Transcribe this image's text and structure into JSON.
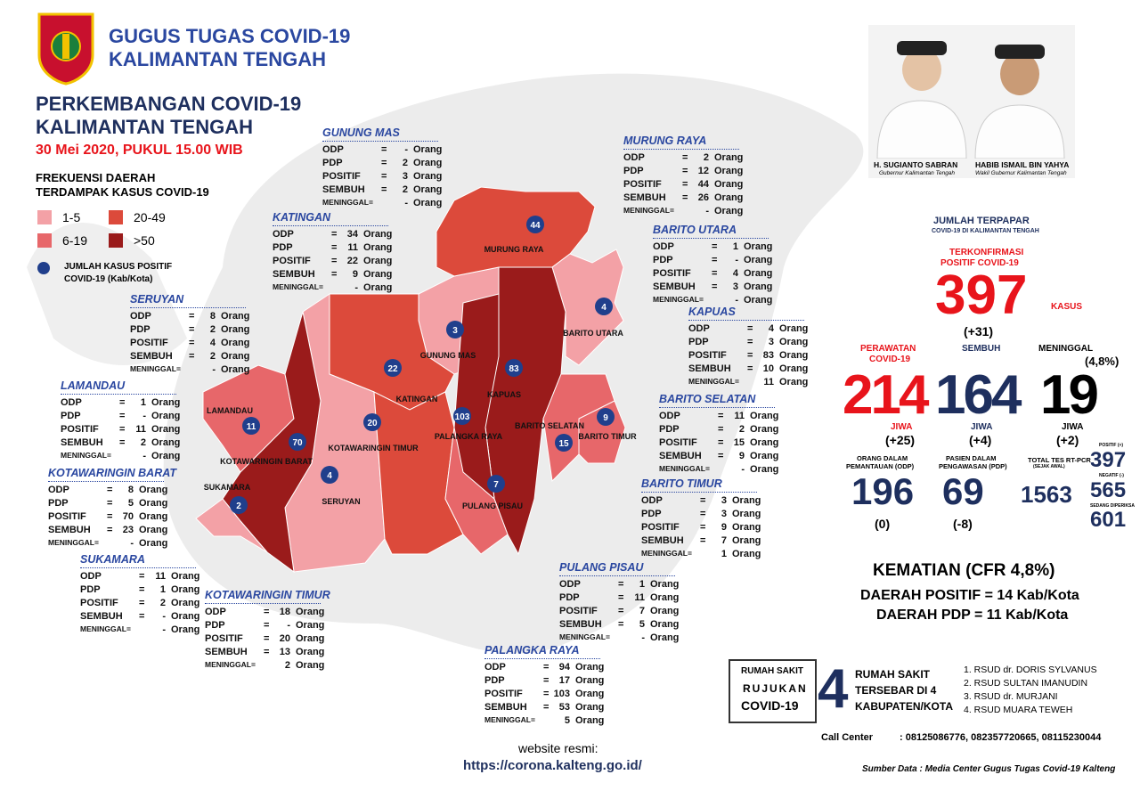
{
  "header": {
    "org_line1": "GUGUS TUGAS COVID-19",
    "org_line2": "KALIMANTAN TENGAH"
  },
  "report": {
    "title_line1": "PERKEMBANGAN COVID-19",
    "title_line2": "KALIMANTAN TENGAH",
    "date": "30 Mei 2020, PUKUL 15.00 WIB"
  },
  "legend": {
    "title_line1": "FREKUENSI DAERAH",
    "title_line2": "TERDAMPAK KASUS COVID-19",
    "classes": [
      {
        "label": "1-5",
        "color": "#f3a1a6"
      },
      {
        "label": "6-19",
        "color": "#e7676a"
      },
      {
        "label": "20-49",
        "color": "#dc4a3b"
      },
      {
        "label": ">50",
        "color": "#9a1b1b"
      }
    ],
    "marker_label_line1": "JUMLAH KASUS POSITIF",
    "marker_label_line2": "COVID-19 (Kab/Kota)",
    "marker_color": "#203f8c"
  },
  "region_table": {
    "row_labels": [
      "ODP",
      "PDP",
      "POSITIF",
      "SEMBUH",
      "MENINGGAL="
    ],
    "equals": "=",
    "unit": "Orang"
  },
  "regions": [
    {
      "name": "GUNUNG MAS",
      "values": [
        "-",
        2,
        3,
        2,
        "-"
      ],
      "color": "#f3a1a6"
    },
    {
      "name": "KATINGAN",
      "values": [
        34,
        11,
        22,
        9,
        "-"
      ],
      "color": "#dc4a3b"
    },
    {
      "name": "SERUYAN",
      "values": [
        8,
        2,
        4,
        2,
        "-"
      ],
      "color": "#f3a1a6"
    },
    {
      "name": "LAMANDAU",
      "values": [
        1,
        "-",
        11,
        2,
        "-"
      ],
      "color": "#e7676a"
    },
    {
      "name": "KOTAWARINGIN BARAT",
      "values": [
        8,
        5,
        70,
        23,
        "-"
      ],
      "color": "#9a1b1b"
    },
    {
      "name": "SUKAMARA",
      "values": [
        11,
        1,
        2,
        "-",
        "-"
      ],
      "color": "#f3a1a6"
    },
    {
      "name": "KOTAWARINGIN TIMUR",
      "values": [
        18,
        "-",
        20,
        13,
        2
      ],
      "color": "#dc4a3b"
    },
    {
      "name": "MURUNG RAYA",
      "values": [
        2,
        12,
        44,
        26,
        "-"
      ],
      "color": "#dc4a3b"
    },
    {
      "name": "BARITO UTARA",
      "values": [
        1,
        "-",
        4,
        3,
        "-"
      ],
      "color": "#f3a1a6"
    },
    {
      "name": "KAPUAS",
      "values": [
        4,
        3,
        83,
        10,
        11
      ],
      "color": "#9a1b1b"
    },
    {
      "name": "BARITO SELATAN",
      "values": [
        11,
        2,
        15,
        9,
        "-"
      ],
      "color": "#e7676a"
    },
    {
      "name": "BARITO TIMUR",
      "values": [
        3,
        3,
        9,
        7,
        1
      ],
      "color": "#e7676a"
    },
    {
      "name": "PULANG PISAU",
      "values": [
        1,
        11,
        7,
        5,
        "-"
      ],
      "color": "#e7676a"
    },
    {
      "name": "PALANGKA RAYA",
      "values": [
        94,
        17,
        103,
        53,
        5
      ],
      "color": "#9a1b1b"
    }
  ],
  "officials": [
    {
      "name": "H. SUGIANTO SABRAN",
      "role": "Gubernur Kalimantan Tengah"
    },
    {
      "name": "HABIB ISMAIL BIN YAHYA",
      "role": "Wakil Gubernur Kalimantan Tengah"
    }
  ],
  "summary": {
    "exposed": {
      "title": "JUMLAH TERPAPAR",
      "subtitle": "COVID-19 DI KALIMANTAN TENGAH",
      "confirmed_label_line1": "TERKONFIRMASI",
      "confirmed_label_line2": "POSITIF COVID-19",
      "confirmed": 397,
      "unit": "KASUS",
      "change": "(+31)"
    },
    "treated": {
      "label_line1": "PERAWATAN",
      "label_line2": "COVID-19",
      "value": 214,
      "unit": "JIWA",
      "change": "(+25)"
    },
    "recovered": {
      "label": "SEMBUH",
      "value": 164,
      "unit": "JIWA",
      "change": "(+4)"
    },
    "deaths": {
      "label": "MENINGGAL",
      "value": 19,
      "rate": "(4,8%)",
      "unit": "JIWA",
      "change": "(+2)"
    },
    "odp": {
      "label_line1": "ORANG DALAM",
      "label_line2": "PEMANTAUAN (ODP)",
      "value": 196,
      "change": "(0)"
    },
    "pdp": {
      "label_line1": "PASIEN DALAM",
      "label_line2": "PENGAWASAN (PDP)",
      "value": 69,
      "change": "(-8)"
    },
    "tests": {
      "label": "TOTAL TES RT-PCR",
      "note": "(SEJAK AWAL)",
      "total": 1563,
      "positive_label": "POSITIF (+)",
      "positive": 397,
      "negative_label": "NEGATIF (-)",
      "negative": 565,
      "pending_label": "SEDANG DIPERIKSA",
      "pending": 601
    }
  },
  "cfr": {
    "title": "KEMATIAN (CFR 4,8%)",
    "positive_regions": "DAERAH POSITIF = 14 Kab/Kota",
    "pdp_regions": "DAERAH PDP = 11 Kab/Kota"
  },
  "hospitals": {
    "label_lines": [
      "RUMAH SAKIT",
      "RUJUKAN",
      "COVID-19"
    ],
    "count": 4,
    "desc_lines": [
      "RUMAH SAKIT",
      "TERSEBAR DI 4",
      "KABUPATEN/KOTA"
    ],
    "list": [
      "1. RSUD dr. DORIS SYLVANUS",
      "2. RSUD SULTAN IMANUDIN",
      "3. RSUD dr. MURJANI",
      "4. RSUD MUARA TEWEH"
    ]
  },
  "contact": {
    "label": "Call Center",
    "numbers": ": 08125086776, 082357720665, 08115230044"
  },
  "website": {
    "label": "website resmi:",
    "url": "https://corona.kalteng.go.id/"
  },
  "source": "Sumber Data : Media Center Gugus Tugas Covid-19 Kalteng"
}
